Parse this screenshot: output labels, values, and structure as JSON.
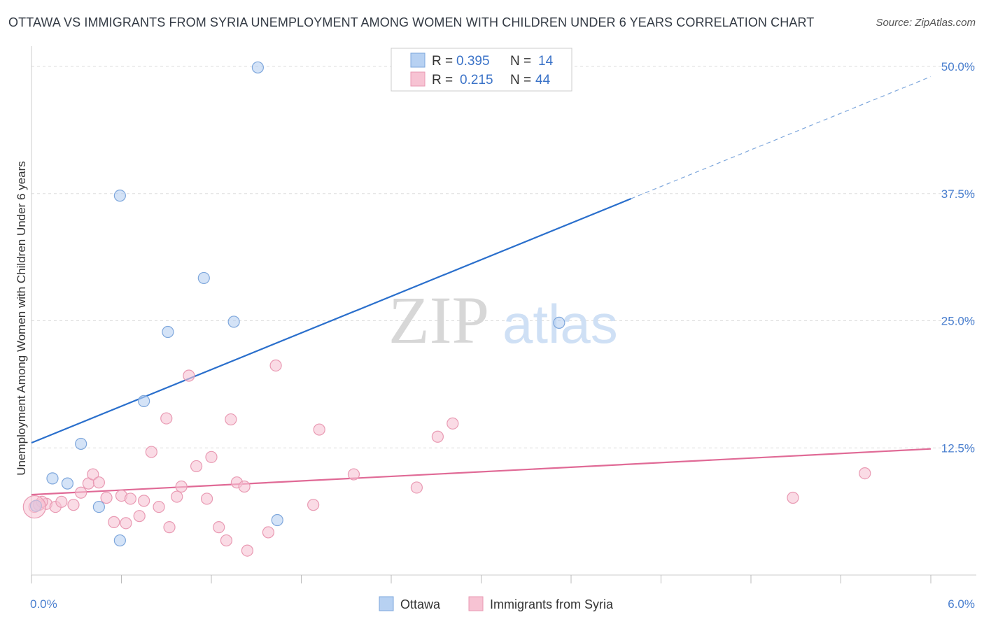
{
  "title": "OTTAWA VS IMMIGRANTS FROM SYRIA UNEMPLOYMENT AMONG WOMEN WITH CHILDREN UNDER 6 YEARS CORRELATION CHART",
  "source": "Source: ZipAtlas.com",
  "watermark": {
    "zip": "ZIP",
    "atlas": "atlas"
  },
  "colors": {
    "ottawa_fill": "#b7d1f2",
    "ottawa_stroke": "#7ea7dc",
    "ottawa_line": "#2a6fcc",
    "syria_fill": "#f7c3d3",
    "syria_stroke": "#e99ab3",
    "syria_line": "#e06a96",
    "tick_text": "#4a7fcf",
    "grid": "#dddddd"
  },
  "legend": {
    "rows": [
      {
        "r_label": "R =",
        "r_value": "0.395",
        "n_label": "N =",
        "n_value": "14"
      },
      {
        "r_label": "R =",
        "r_value": "0.215",
        "n_label": "N =",
        "n_value": "44"
      }
    ]
  },
  "chart_data": {
    "type": "scatter",
    "xlabel": "",
    "ylabel": "Unemployment Among Women with Children Under 6 years",
    "xlim": [
      0,
      6.0
    ],
    "ylim": [
      0,
      50
    ],
    "x_tick_labels": [
      "0.0%",
      "6.0%"
    ],
    "y_ticks": [
      12.5,
      25.0,
      37.5,
      50.0
    ],
    "y_tick_labels": [
      "12.5%",
      "25.0%",
      "37.5%",
      "50.0%"
    ],
    "series": [
      {
        "name": "Ottawa",
        "points": [
          [
            0.03,
            6.8
          ],
          [
            0.14,
            9.5
          ],
          [
            0.24,
            9.0
          ],
          [
            0.33,
            12.9
          ],
          [
            0.45,
            6.7
          ],
          [
            0.59,
            37.3
          ],
          [
            0.75,
            17.1
          ],
          [
            0.91,
            23.9
          ],
          [
            1.15,
            29.2
          ],
          [
            1.35,
            24.9
          ],
          [
            1.51,
            49.9
          ],
          [
            1.64,
            5.4
          ],
          [
            3.52,
            24.8
          ],
          [
            0.59,
            3.4
          ]
        ],
        "trend": {
          "x0": 0.0,
          "y0": 13.0,
          "x1": 4.0,
          "y1": 37.0,
          "dash_x1": 6.0,
          "dash_y1": 49.0
        }
      },
      {
        "name": "Immigrants from Syria",
        "points": [
          [
            0.02,
            6.7
          ],
          [
            0.05,
            6.9
          ],
          [
            0.1,
            7.0
          ],
          [
            0.16,
            6.7
          ],
          [
            0.2,
            7.2
          ],
          [
            0.28,
            6.9
          ],
          [
            0.33,
            8.1
          ],
          [
            0.38,
            9.0
          ],
          [
            0.41,
            9.9
          ],
          [
            0.45,
            9.1
          ],
          [
            0.5,
            7.6
          ],
          [
            0.55,
            5.2
          ],
          [
            0.6,
            7.8
          ],
          [
            0.63,
            5.1
          ],
          [
            0.66,
            7.5
          ],
          [
            0.72,
            5.8
          ],
          [
            0.75,
            7.3
          ],
          [
            0.8,
            12.1
          ],
          [
            0.85,
            6.7
          ],
          [
            0.9,
            15.4
          ],
          [
            0.92,
            4.7
          ],
          [
            0.97,
            7.7
          ],
          [
            1.0,
            8.7
          ],
          [
            1.05,
            19.6
          ],
          [
            1.1,
            10.7
          ],
          [
            1.17,
            7.5
          ],
          [
            1.2,
            11.6
          ],
          [
            1.25,
            4.7
          ],
          [
            1.3,
            3.4
          ],
          [
            1.33,
            15.3
          ],
          [
            1.37,
            9.1
          ],
          [
            1.42,
            8.7
          ],
          [
            1.44,
            2.4
          ],
          [
            1.58,
            4.2
          ],
          [
            1.63,
            20.6
          ],
          [
            1.88,
            6.9
          ],
          [
            1.92,
            14.3
          ],
          [
            2.15,
            9.9
          ],
          [
            2.57,
            8.6
          ],
          [
            2.71,
            13.6
          ],
          [
            2.81,
            14.9
          ],
          [
            5.08,
            7.6
          ],
          [
            5.56,
            10.0
          ],
          [
            0.07,
            7.2
          ]
        ],
        "trend": {
          "x0": 0.0,
          "y0": 7.9,
          "x1": 6.0,
          "y1": 12.4
        }
      }
    ],
    "grid": true,
    "legend_placement": "top-center"
  }
}
